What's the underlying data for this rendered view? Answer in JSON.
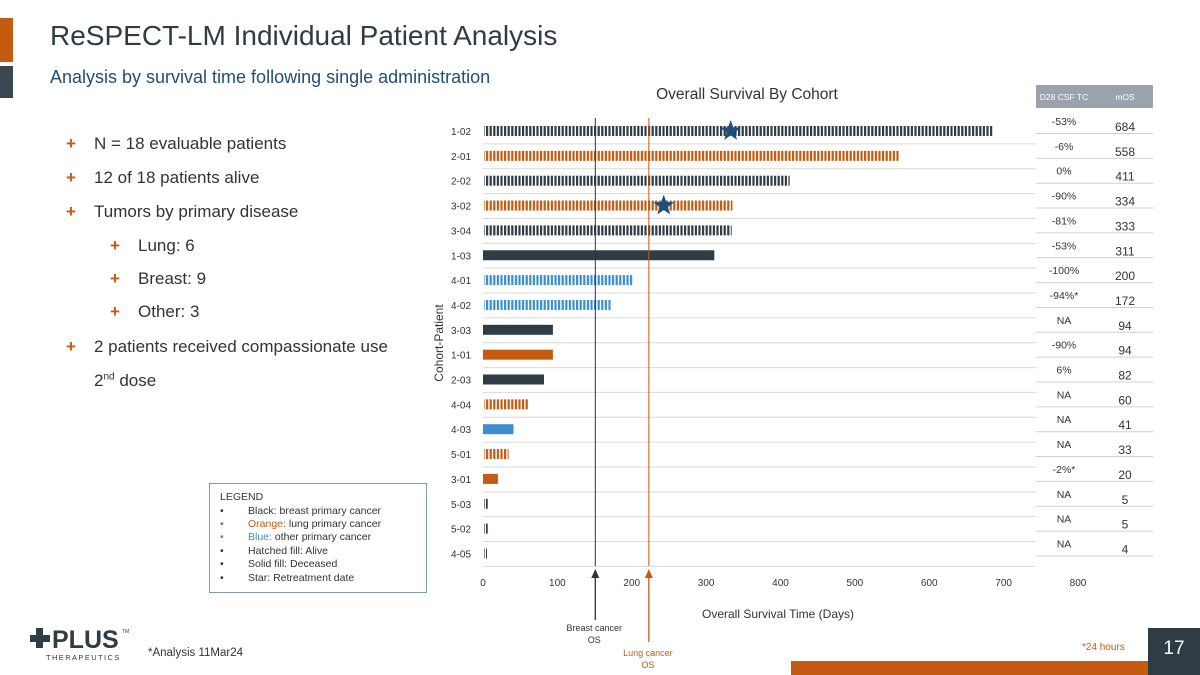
{
  "slide": {
    "title": "ReSPECT-LM Individual Patient Analysis",
    "subtitle": "Analysis by survival time following single administration",
    "page_number": "17",
    "footnote": "*Analysis 11Mar24",
    "footnote_24h": "*24 hours",
    "logo_main": "PLUS",
    "logo_sub": "THERAPEUTICS",
    "logo_tm": "TM"
  },
  "bullets": [
    {
      "text": "N = 18 evaluable patients",
      "level": 1
    },
    {
      "text": "12 of 18 patients alive",
      "level": 1
    },
    {
      "text": "Tumors by primary disease",
      "level": 1
    },
    {
      "text": "Lung: 6",
      "level": 2
    },
    {
      "text": "Breast: 9",
      "level": 2
    },
    {
      "text": "Other: 3",
      "level": 2
    },
    {
      "text": "2 patients received compassionate use",
      "level": 1
    }
  ],
  "bullet_cont": {
    "pre": "2",
    "sup": "nd",
    "post": " dose"
  },
  "legend": {
    "title": "LEGEND",
    "items": [
      {
        "label": "Black: breast primary cancer",
        "prefix": "",
        "color": "#333333"
      },
      {
        "label": " lung primary cancer",
        "prefix": "Orange:",
        "color": "#c55a11"
      },
      {
        "label": " other primary cancer",
        "prefix": "Blue:",
        "color": "#3b8fd0"
      },
      {
        "label": "Hatched fill: Alive",
        "prefix": "",
        "color": "#333333"
      },
      {
        "label": "Solid fill: Deceased",
        "prefix": "",
        "color": "#333333"
      },
      {
        "label": "Star: Retreatment date",
        "prefix": "",
        "color": "#333333"
      }
    ]
  },
  "table": {
    "col1": "D28 CSF TC",
    "col2": "mOS",
    "header_bg": "#9aa3ad"
  },
  "colors": {
    "breast": "#2f3b45",
    "lung": "#c55a11",
    "other": "#3b8fd0",
    "star": "#1f4e79"
  },
  "chart_data": {
    "type": "bar",
    "orientation": "horizontal",
    "title": "Overall Survival By Cohort",
    "xlabel": "Overall Survival Time (Days)",
    "ylabel": "Cohort-Patient",
    "xlim": [
      0,
      800
    ],
    "xticks": [
      0,
      100,
      200,
      300,
      400,
      500,
      600,
      700,
      800
    ],
    "rows": [
      {
        "id": "1-02",
        "days": 684,
        "primary": "breast",
        "alive": true,
        "retreat_day": 333,
        "csf_tc": "-53%",
        "mos": "684"
      },
      {
        "id": "2-01",
        "days": 558,
        "primary": "lung",
        "alive": true,
        "retreat_day": null,
        "csf_tc": "-6%",
        "mos": "558"
      },
      {
        "id": "2-02",
        "days": 411,
        "primary": "breast",
        "alive": true,
        "retreat_day": null,
        "csf_tc": "0%",
        "mos": "411"
      },
      {
        "id": "3-02",
        "days": 334,
        "primary": "lung",
        "alive": true,
        "retreat_day": 243,
        "csf_tc": "-90%",
        "mos": "334"
      },
      {
        "id": "3-04",
        "days": 333,
        "primary": "breast",
        "alive": true,
        "retreat_day": null,
        "csf_tc": "-81%",
        "mos": "333"
      },
      {
        "id": "1-03",
        "days": 311,
        "primary": "breast",
        "alive": false,
        "retreat_day": null,
        "csf_tc": "-53%",
        "mos": "311"
      },
      {
        "id": "4-01",
        "days": 200,
        "primary": "other",
        "alive": true,
        "retreat_day": null,
        "csf_tc": "-100%",
        "mos": "200"
      },
      {
        "id": "4-02",
        "days": 172,
        "primary": "other",
        "alive": true,
        "retreat_day": null,
        "csf_tc": "-94%*",
        "mos": "172"
      },
      {
        "id": "3-03",
        "days": 94,
        "primary": "breast",
        "alive": false,
        "retreat_day": null,
        "csf_tc": "NA",
        "mos": "94"
      },
      {
        "id": "1-01",
        "days": 94,
        "primary": "lung",
        "alive": false,
        "retreat_day": null,
        "csf_tc": "-90%",
        "mos": "94"
      },
      {
        "id": "2-03",
        "days": 82,
        "primary": "breast",
        "alive": false,
        "retreat_day": null,
        "csf_tc": "6%",
        "mos": "82"
      },
      {
        "id": "4-04",
        "days": 60,
        "primary": "lung",
        "alive": true,
        "retreat_day": null,
        "csf_tc": "NA",
        "mos": "60"
      },
      {
        "id": "4-03",
        "days": 41,
        "primary": "other",
        "alive": false,
        "retreat_day": null,
        "csf_tc": "NA",
        "mos": "41"
      },
      {
        "id": "5-01",
        "days": 33,
        "primary": "lung",
        "alive": true,
        "retreat_day": null,
        "csf_tc": "NA",
        "mos": "33"
      },
      {
        "id": "3-01",
        "days": 20,
        "primary": "lung",
        "alive": false,
        "retreat_day": null,
        "csf_tc": "-2%*",
        "mos": "20"
      },
      {
        "id": "5-03",
        "days": 5,
        "primary": "breast",
        "alive": true,
        "retreat_day": null,
        "csf_tc": "NA",
        "mos": "5"
      },
      {
        "id": "5-02",
        "days": 5,
        "primary": "breast",
        "alive": true,
        "retreat_day": null,
        "csf_tc": "NA",
        "mos": "5"
      },
      {
        "id": "4-05",
        "days": 4,
        "primary": "breast",
        "alive": true,
        "retreat_day": null,
        "csf_tc": "NA",
        "mos": "4"
      }
    ],
    "reference_lines": [
      {
        "label": "Breast cancer OS",
        "line1": "Breast cancer",
        "line2": "OS",
        "x": 151,
        "color": "#333333"
      },
      {
        "label": "Lung cancer OS",
        "line1": "Lung cancer",
        "line2": "OS",
        "x": 223,
        "color": "#c55a11"
      }
    ]
  }
}
